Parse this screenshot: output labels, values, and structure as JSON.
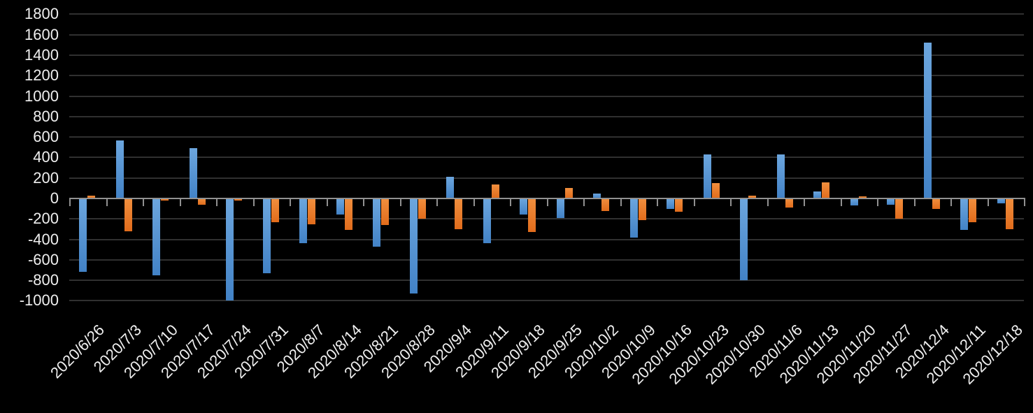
{
  "chart_data": {
    "type": "bar",
    "title": "",
    "xlabel": "",
    "ylabel": "",
    "legend": "none",
    "grid": true,
    "ylim": [
      -1000,
      1800
    ],
    "ytick_step": 200,
    "y_tick_labels": [
      "1800",
      "1600",
      "1400",
      "1200",
      "1000",
      "800",
      "600",
      "400",
      "200",
      "0",
      "-200",
      "-400",
      "-600",
      "-800",
      "-1000"
    ],
    "categories": [
      "2020/6/26",
      "2020/7/3",
      "2020/7/10",
      "2020/7/17",
      "2020/7/24",
      "2020/7/31",
      "2020/8/7",
      "2020/8/14",
      "2020/8/21",
      "2020/8/28",
      "2020/9/4",
      "2020/9/11",
      "2020/9/18",
      "2020/9/25",
      "2020/10/2",
      "2020/10/9",
      "2020/10/16",
      "2020/10/23",
      "2020/10/30",
      "2020/11/6",
      "2020/11/13",
      "2020/11/20",
      "2020/11/27",
      "2020/12/4",
      "2020/12/11",
      "2020/12/18"
    ],
    "series": [
      {
        "name": "blue-series",
        "color": "#5b9bd5",
        "values": [
          -720,
          570,
          -750,
          490,
          -1000,
          -730,
          -440,
          -160,
          -470,
          -930,
          210,
          -440,
          -160,
          -190,
          50,
          -380,
          -100,
          430,
          -800,
          430,
          70,
          -70,
          -60,
          1520,
          -310,
          -50
        ]
      },
      {
        "name": "orange-series",
        "color": "#ed7d31",
        "values": [
          30,
          -320,
          -20,
          -60,
          -20,
          -230,
          -250,
          -310,
          -260,
          -200,
          -300,
          140,
          -330,
          100,
          -120,
          -210,
          -130,
          150,
          30,
          -90,
          160,
          20,
          -200,
          -100,
          -230,
          -300
        ]
      }
    ],
    "colors": {
      "background": "#000000",
      "gridline": "#303030",
      "axis_line": "#919191",
      "tick_text": "#efefef",
      "blue_gradient": [
        "#6ca6de",
        "#4282c6"
      ],
      "orange_gradient": [
        "#f18f3e",
        "#e16c1c"
      ]
    }
  }
}
